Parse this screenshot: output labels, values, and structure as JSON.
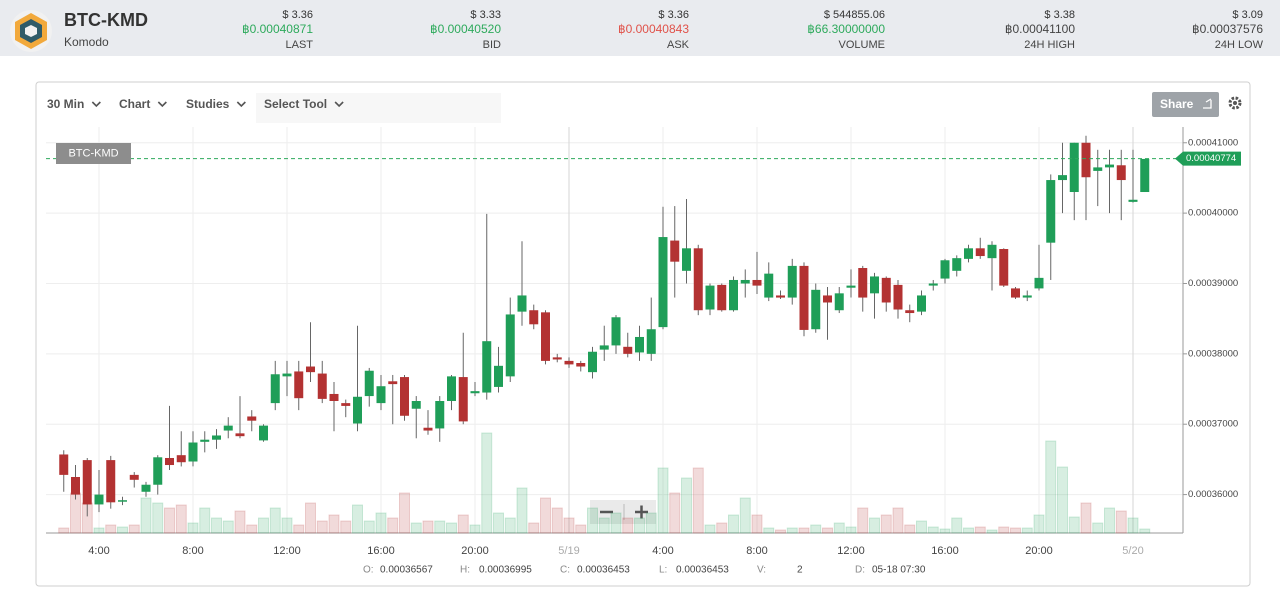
{
  "header": {
    "symbol": "BTC-KMD",
    "name": "Komodo",
    "stats": [
      {
        "usd": "$ 3.36",
        "btc": "฿0.00040871",
        "label": "LAST",
        "color": "#2eaa5c"
      },
      {
        "usd": "$ 3.33",
        "btc": "฿0.00040520",
        "label": "BID",
        "color": "#2eaa5c"
      },
      {
        "usd": "$ 3.36",
        "btc": "฿0.00040843",
        "label": "ASK",
        "color": "#e0524a"
      },
      {
        "usd": "$ 544855.06",
        "btc": "฿66.30000000",
        "label": "VOLUME",
        "color": "#2eaa5c"
      },
      {
        "usd": "$ 3.38",
        "btc": "฿0.00041100",
        "label": "24H HIGH",
        "color": "#444444"
      },
      {
        "usd": "$ 3.09",
        "btc": "฿0.00037576",
        "label": "24H LOW",
        "color": "#444444"
      }
    ]
  },
  "toolbar": {
    "items": [
      "30 Min",
      "Chart",
      "Studies",
      "Select Tool"
    ],
    "share": "Share"
  },
  "ohlc_info": [
    {
      "label": "O:",
      "value": "0.00036567"
    },
    {
      "label": "H:",
      "value": "0.00036995"
    },
    {
      "label": "C:",
      "value": "0.00036453"
    },
    {
      "label": "L:",
      "value": "0.00036453"
    },
    {
      "label": "V:",
      "value": "2"
    },
    {
      "label": "D:",
      "value": "05-18 07:30"
    }
  ],
  "chart_data": {
    "type": "candlestick",
    "series_label": "BTC-KMD",
    "last_price": 0.00040774,
    "up_color": "#1f9e58",
    "down_color": "#b33232",
    "grid": true,
    "ylim": [
      0.00035454,
      0.00041224
    ],
    "yticks": [
      {
        "value": 0.00036,
        "label": "0.00036000"
      },
      {
        "value": 0.00037,
        "label": "0.00037000"
      },
      {
        "value": 0.00038,
        "label": "0.00038000"
      },
      {
        "value": 0.00039,
        "label": "0.00039000"
      },
      {
        "value": 0.0004,
        "label": "0.00040000"
      },
      {
        "value": 0.00041,
        "label": "0.00041000"
      }
    ],
    "categories": [
      null,
      null,
      null,
      "4:00",
      null,
      null,
      null,
      null,
      null,
      null,
      null,
      "8:00",
      null,
      null,
      null,
      null,
      null,
      null,
      null,
      "12:00",
      null,
      null,
      null,
      null,
      null,
      null,
      null,
      "16:00",
      null,
      null,
      null,
      null,
      null,
      null,
      null,
      "20:00",
      null,
      null,
      null,
      null,
      null,
      null,
      null,
      "5/19",
      null,
      null,
      null,
      null,
      null,
      null,
      null,
      "4:00",
      null,
      null,
      null,
      null,
      null,
      null,
      null,
      "8:00",
      null,
      null,
      null,
      null,
      null,
      null,
      null,
      "12:00",
      null,
      null,
      null,
      null,
      null,
      null,
      null,
      "16:00",
      null,
      null,
      null,
      null,
      null,
      null,
      null,
      "20:00",
      null,
      null,
      null,
      null,
      null,
      null,
      null,
      "5/20",
      null
    ],
    "open": [
      0.0003657,
      0.0003625,
      0.0003649,
      0.0003586,
      0.0003649,
      0.000359,
      0.0003628,
      0.0003604,
      0.0003614,
      0.0003652,
      0.0003656,
      0.0003647,
      0.0003675,
      0.0003678,
      0.0003691,
      0.0003687,
      0.0003711,
      0.0003677,
      0.000373,
      0.0003768,
      0.0003775,
      0.0003782,
      0.0003772,
      0.0003743,
      0.000373,
      0.0003701,
      0.000374,
      0.000373,
      0.0003761,
      0.0003767,
      0.0003722,
      0.0003695,
      0.0003694,
      0.0003733,
      0.0003767,
      0.0003744,
      0.0003745,
      0.0003753,
      0.0003768,
      0.000386,
      0.0003862,
      0.0003859,
      0.0003795,
      0.000379,
      0.0003787,
      0.0003774,
      0.0003806,
      0.0003812,
      0.000381,
      0.0003802,
      0.00038,
      0.0003838,
      0.0003961,
      0.0003918,
      0.000395,
      0.0003863,
      0.0003898,
      0.0003862,
      0.00039,
      0.0003905,
      0.000388,
      0.0003883,
      0.000388,
      0.0003925,
      0.0003835,
      0.0003883,
      0.0003862,
      0.0003894,
      0.0003922,
      0.0003886,
      0.0003908,
      0.0003898,
      0.0003862,
      0.000386,
      0.0003897,
      0.0003907,
      0.0003918,
      0.0003935,
      0.000395,
      0.0003936,
      0.0003949,
      0.0003893,
      0.000388,
      0.0003893,
      0.0003958,
      0.0004047,
      0.000403,
      0.00041,
      0.000406,
      0.0004065,
      0.0004068,
      0.0004016,
      0.000403
    ],
    "high": [
      0.0003663,
      0.0003642,
      0.0003652,
      0.0003635,
      0.0003655,
      0.0003597,
      0.0003632,
      0.0003618,
      0.0003656,
      0.0003726,
      0.000369,
      0.000369,
      0.000369,
      0.0003693,
      0.000371,
      0.000374,
      0.000372,
      0.00037,
      0.000379,
      0.000379,
      0.000379,
      0.0003845,
      0.000379,
      0.000376,
      0.0003735,
      0.000384,
      0.000378,
      0.000377,
      0.000377,
      0.000377,
      0.000374,
      0.000372,
      0.000374,
      0.000377,
      0.000383,
      0.000376,
      0.0003999,
      0.000381,
      0.000388,
      0.000396,
      0.000387,
      0.0003862,
      0.00038,
      0.0003795,
      0.000379,
      0.000381,
      0.000384,
      0.0003855,
      0.000383,
      0.000384,
      0.000388,
      0.0004009,
      0.000401,
      0.000402,
      0.0003955,
      0.00039,
      0.00039,
      0.000391,
      0.000392,
      0.0003945,
      0.000393,
      0.000389,
      0.0003935,
      0.000393,
      0.00039,
      0.0003895,
      0.0003895,
      0.000392,
      0.0003925,
      0.0003915,
      0.000391,
      0.0003905,
      0.000387,
      0.000389,
      0.0003905,
      0.0003935,
      0.000394,
      0.0003955,
      0.0003965,
      0.000396,
      0.000395,
      0.0003895,
      0.000389,
      0.0003955,
      0.0004055,
      0.00041,
      0.00041,
      0.000411,
      0.000409,
      0.000409,
      0.000409,
      0.000409,
      0.0004077
    ],
    "low": [
      0.0003604,
      0.0003593,
      0.0003569,
      0.0003575,
      0.000358,
      0.0003585,
      0.000361,
      0.0003597,
      0.00036,
      0.0003635,
      0.000364,
      0.000364,
      0.000366,
      0.0003665,
      0.000368,
      0.000368,
      0.000369,
      0.0003675,
      0.000372,
      0.000374,
      0.000372,
      0.000376,
      0.000373,
      0.000369,
      0.000371,
      0.000369,
      0.0003725,
      0.000372,
      0.00037,
      0.0003705,
      0.000368,
      0.0003685,
      0.0003675,
      0.000372,
      0.00037,
      0.000374,
      0.0003735,
      0.0003745,
      0.000376,
      0.000384,
      0.0003835,
      0.0003785,
      0.0003788,
      0.000378,
      0.0003775,
      0.0003765,
      0.000379,
      0.00038,
      0.0003795,
      0.000379,
      0.000379,
      0.0003835,
      0.000388,
      0.00039,
      0.0003855,
      0.0003855,
      0.000386,
      0.000386,
      0.000388,
      0.0003885,
      0.0003875,
      0.0003878,
      0.000387,
      0.0003825,
      0.000383,
      0.000382,
      0.0003858,
      0.000388,
      0.000386,
      0.000385,
      0.000386,
      0.000385,
      0.0003845,
      0.0003855,
      0.000389,
      0.00039,
      0.000391,
      0.000393,
      0.0003935,
      0.000389,
      0.0003895,
      0.0003878,
      0.0003875,
      0.000389,
      0.0003905,
      0.0004,
      0.000399,
      0.000399,
      0.000401,
      0.0004,
      0.000399,
      0.0004015,
      0.000403
    ],
    "close": [
      0.0003628,
      0.00036,
      0.0003586,
      0.00036,
      0.0003589,
      0.0003592,
      0.0003621,
      0.0003614,
      0.0003653,
      0.0003642,
      0.0003646,
      0.0003674,
      0.0003678,
      0.0003684,
      0.0003698,
      0.0003683,
      0.0003705,
      0.0003698,
      0.0003771,
      0.0003772,
      0.0003737,
      0.0003774,
      0.0003736,
      0.0003733,
      0.0003726,
      0.0003739,
      0.0003776,
      0.0003754,
      0.0003757,
      0.0003712,
      0.0003733,
      0.0003691,
      0.0003733,
      0.0003768,
      0.0003704,
      0.0003747,
      0.0003818,
      0.0003783,
      0.0003856,
      0.0003883,
      0.0003842,
      0.000379,
      0.0003792,
      0.0003785,
      0.0003782,
      0.0003803,
      0.0003812,
      0.0003852,
      0.00038,
      0.0003824,
      0.0003835,
      0.0003966,
      0.0003931,
      0.000395,
      0.0003862,
      0.0003897,
      0.0003862,
      0.0003905,
      0.0003905,
      0.0003897,
      0.0003914,
      0.000388,
      0.0003925,
      0.0003834,
      0.0003891,
      0.0003873,
      0.0003886,
      0.0003897,
      0.000388,
      0.000391,
      0.0003873,
      0.0003863,
      0.0003858,
      0.0003883,
      0.00039,
      0.0003933,
      0.0003936,
      0.000395,
      0.0003939,
      0.0003955,
      0.0003897,
      0.000388,
      0.0003883,
      0.0003908,
      0.0004047,
      0.0004054,
      0.00041,
      0.0004051,
      0.0004065,
      0.0004069,
      0.0004047,
      0.0004019,
      0.0004077
    ],
    "volume_lim": [
      0,
      110
    ],
    "volumes": [
      5,
      40,
      30,
      5,
      8,
      6,
      8,
      35,
      30,
      25,
      28,
      10,
      25,
      15,
      12,
      22,
      8,
      15,
      25,
      15,
      8,
      30,
      12,
      18,
      12,
      28,
      12,
      20,
      15,
      40,
      10,
      12,
      12,
      10,
      18,
      8,
      100,
      20,
      15,
      45,
      10,
      35,
      25,
      15,
      8,
      25,
      15,
      20,
      15,
      15,
      20,
      65,
      40,
      55,
      65,
      8,
      10,
      18,
      35,
      18,
      5,
      3,
      5,
      5,
      8,
      5,
      10,
      6,
      25,
      15,
      18,
      25,
      8,
      12,
      6,
      4,
      15,
      5,
      6,
      3,
      6,
      5,
      5,
      18,
      92,
      66,
      16,
      30,
      10,
      25,
      22,
      15,
      4
    ]
  }
}
